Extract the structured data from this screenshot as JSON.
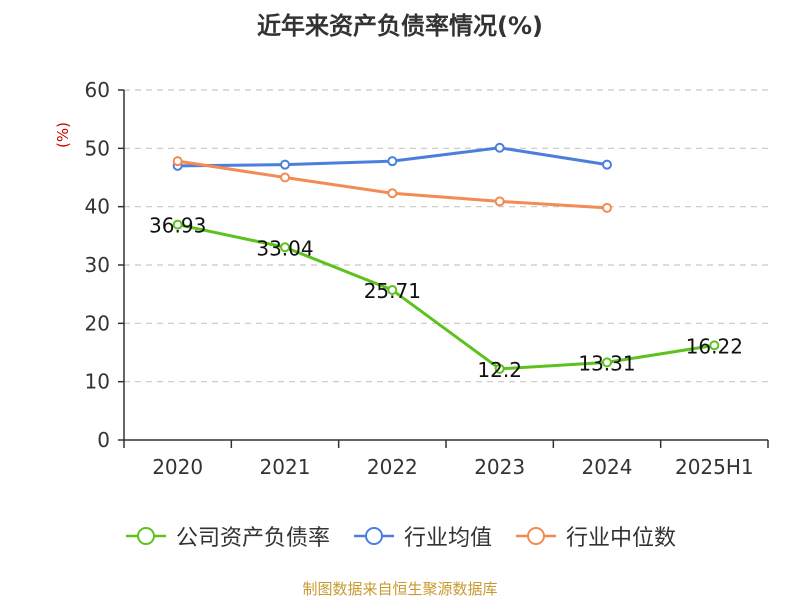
{
  "chart_data": {
    "type": "line",
    "title": "近年来资产负债率情况(%)",
    "ylabel": "(%)",
    "categories": [
      "2020",
      "2021",
      "2022",
      "2023",
      "2024",
      "2025H1"
    ],
    "ylim": [
      0,
      60
    ],
    "yticks": [
      0,
      10,
      20,
      30,
      40,
      50,
      60
    ],
    "grid": true,
    "legend_position": "bottom",
    "series": [
      {
        "name": "公司资产负债率",
        "color": "#5ec21e",
        "values": [
          36.93,
          33.04,
          25.71,
          12.2,
          13.31,
          16.22
        ],
        "labels": [
          "36.93",
          "33.04",
          "25.71",
          "12.2",
          "13.31",
          "16.22"
        ]
      },
      {
        "name": "行业均值",
        "color": "#4a7fdc",
        "values": [
          47.0,
          47.2,
          47.8,
          50.1,
          47.2,
          null
        ]
      },
      {
        "name": "行业中位数",
        "color": "#f28b55",
        "values": [
          47.8,
          45.0,
          42.3,
          40.9,
          39.8,
          null
        ]
      }
    ]
  },
  "source": "制图数据来自恒生聚源数据库"
}
